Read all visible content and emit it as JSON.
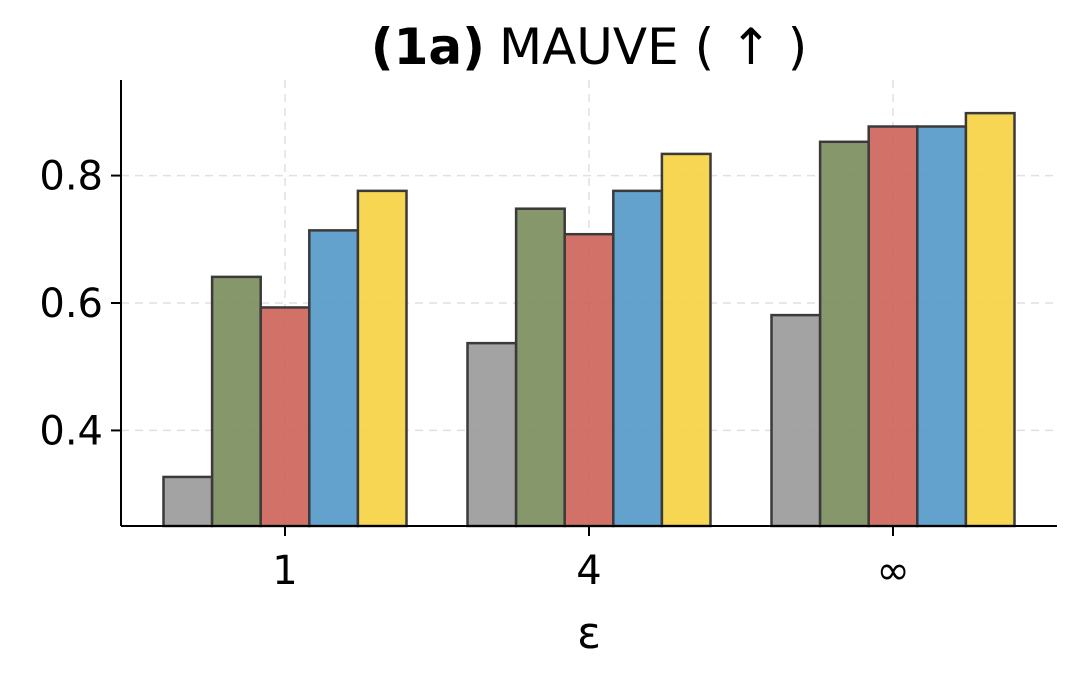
{
  "chart_data": {
    "type": "bar",
    "title_bold": "(1a)",
    "title": "MAUVE ( ↑ )",
    "xlabel": "ε",
    "ylabel": "",
    "categories": [
      "1",
      "4",
      "∞"
    ],
    "ylim": [
      0.25,
      0.95
    ],
    "yticks": [
      0.4,
      0.6,
      0.8
    ],
    "ytick_labels": [
      "0.4",
      "0.6",
      "0.8"
    ],
    "grid": true,
    "series": [
      {
        "color": "#999999",
        "values": [
          0.327,
          0.537,
          0.581
        ]
      },
      {
        "color": "#7a8c5c",
        "values": [
          0.641,
          0.748,
          0.853
        ]
      },
      {
        "color": "#cc6258",
        "values": [
          0.593,
          0.708,
          0.877
        ]
      },
      {
        "color": "#5298c8",
        "values": [
          0.714,
          0.776,
          0.877
        ]
      },
      {
        "color": "#f5d240",
        "values": [
          0.776,
          0.834,
          0.898
        ]
      }
    ]
  }
}
